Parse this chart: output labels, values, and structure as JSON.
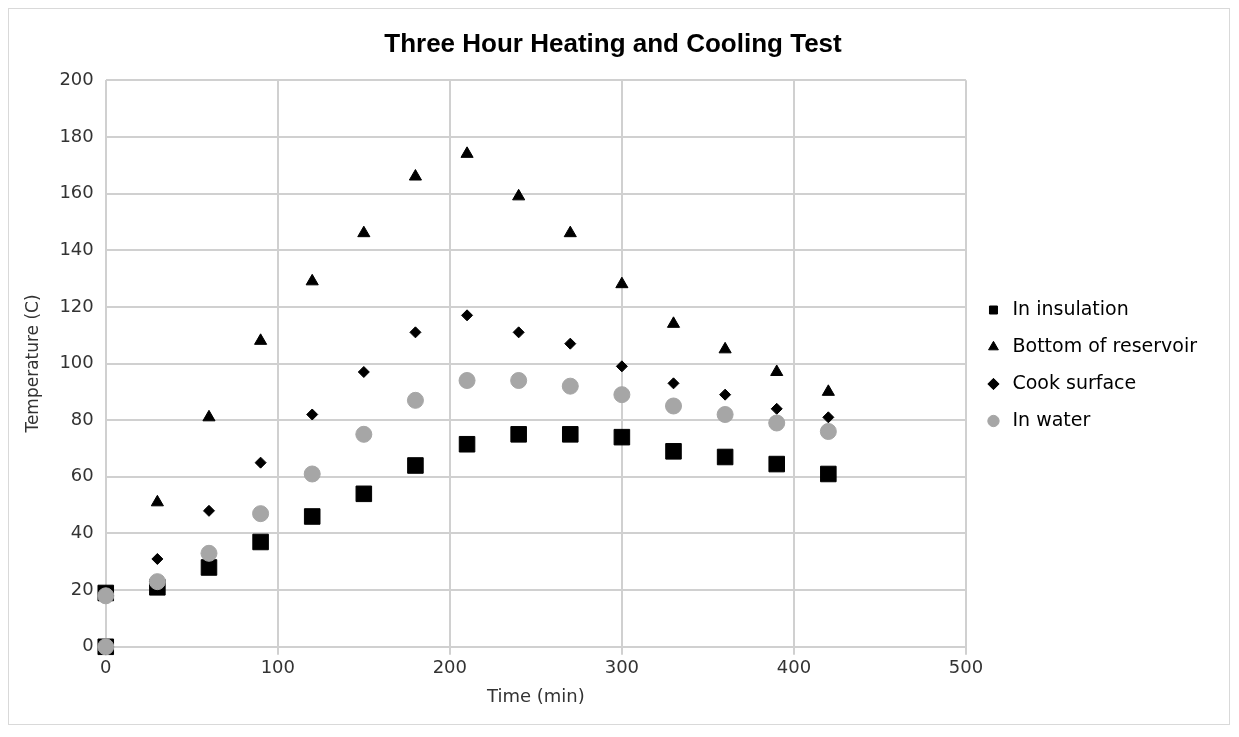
{
  "chart_data": {
    "type": "scatter",
    "title": "Three Hour Heating and Cooling Test",
    "xlabel": "Time (min)",
    "ylabel": "Temperature (C)",
    "x": [
      0,
      0,
      30,
      60,
      90,
      120,
      150,
      180,
      210,
      240,
      270,
      300,
      330,
      360,
      390,
      420
    ],
    "xlim": [
      0,
      500
    ],
    "xticks": [
      0,
      100,
      200,
      300,
      400,
      500
    ],
    "ylim": [
      0,
      200
    ],
    "yticks": [
      0,
      20,
      40,
      60,
      80,
      100,
      120,
      140,
      160,
      180,
      200
    ],
    "grid": true,
    "legend": "right",
    "series": [
      {
        "name": "In insulation",
        "color": "#000000",
        "marker": "square",
        "values": [
          0,
          19,
          21,
          28,
          37,
          46,
          54,
          64,
          71.5,
          75,
          75,
          74,
          69,
          67,
          64.5,
          61
        ]
      },
      {
        "name": "Bottom of reservoir",
        "color": "#000000",
        "marker": "triangle",
        "values": [
          null,
          null,
          51,
          81,
          108,
          129,
          146,
          166,
          174,
          159,
          146,
          128,
          114,
          105,
          97,
          90
        ]
      },
      {
        "name": "Cook surface",
        "color": "#000000",
        "marker": "diamond",
        "values": [
          null,
          null,
          31,
          48,
          65,
          82,
          97,
          111,
          117,
          111,
          107,
          99,
          93,
          89,
          84,
          81
        ]
      },
      {
        "name": "In water",
        "color": "#a6a6a6",
        "marker": "circle",
        "values": [
          0,
          18,
          23,
          33,
          47,
          61,
          75,
          87,
          94,
          94,
          92,
          89,
          85,
          82,
          79,
          76
        ]
      }
    ]
  }
}
